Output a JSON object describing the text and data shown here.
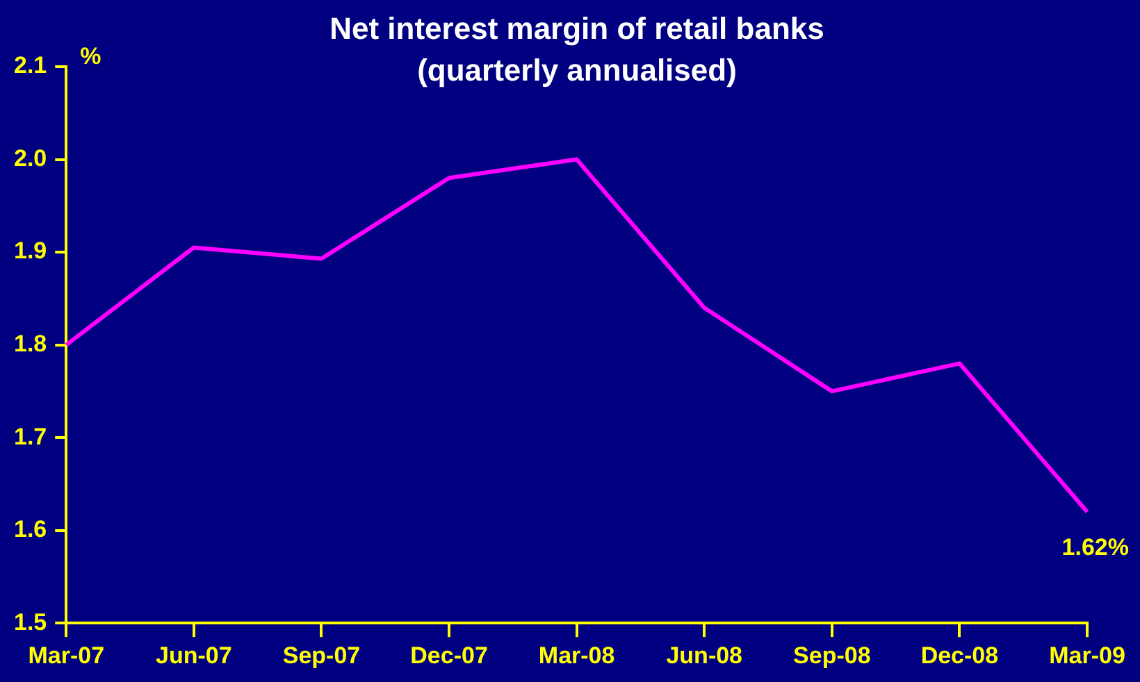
{
  "chart_data": {
    "type": "line",
    "title": "Net interest margin of retail banks (quarterly annualised)",
    "ylabel": "%",
    "categories": [
      "Mar-07",
      "Jun-07",
      "Sep-07",
      "Dec-07",
      "Mar-08",
      "Jun-08",
      "Sep-08",
      "Dec-08",
      "Mar-09"
    ],
    "series": [
      {
        "color": "#ff00ff",
        "values": [
          1.8,
          1.905,
          1.893,
          1.98,
          2.0,
          1.84,
          1.75,
          1.78,
          1.62
        ]
      }
    ],
    "ylim": [
      1.5,
      2.1
    ],
    "yticks": [
      1.5,
      1.6,
      1.7,
      1.8,
      1.9,
      {
        "value": 2.0,
        "label": "2.0"
      },
      2.1
    ],
    "annotations": [
      {
        "text": "1.62%",
        "x": "Mar-09",
        "y": 1.62
      }
    ],
    "grid": false,
    "legend": false,
    "marker": "none",
    "line_style": "solid"
  }
}
